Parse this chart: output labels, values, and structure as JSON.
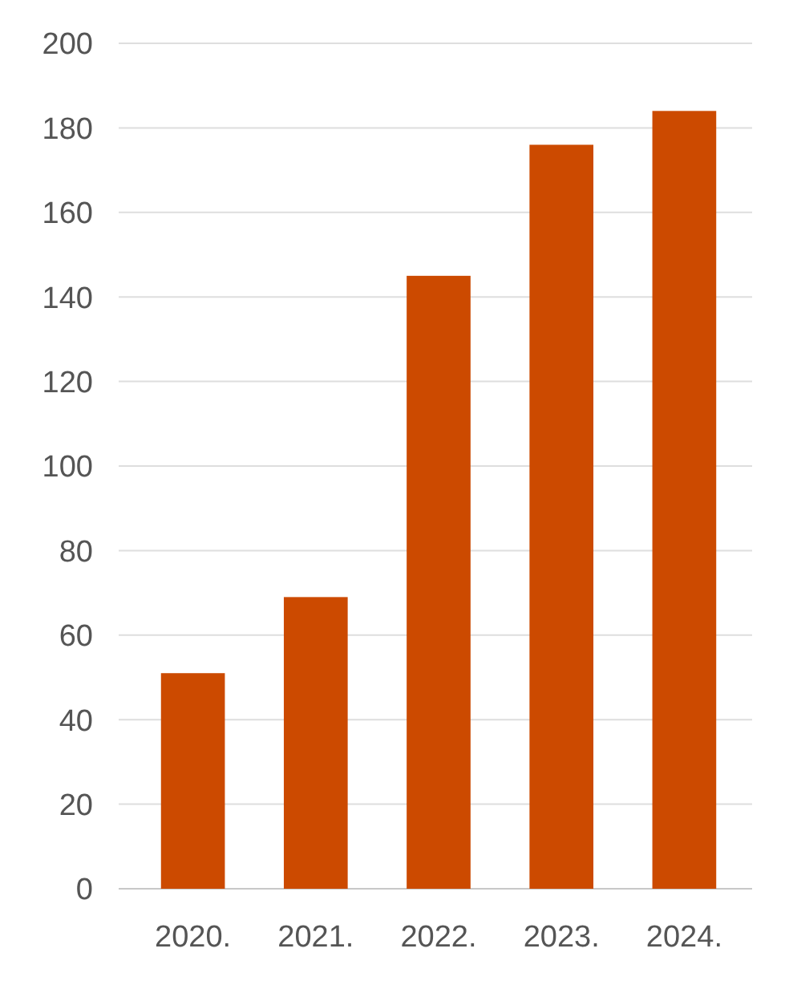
{
  "chart_data": {
    "type": "bar",
    "categories": [
      "2020.",
      "2021.",
      "2022.",
      "2023.",
      "2024."
    ],
    "values": [
      51,
      69,
      145,
      176,
      184
    ],
    "color": "#cc4a00",
    "ylim": [
      0,
      200
    ],
    "yticks": [
      0,
      20,
      40,
      60,
      80,
      100,
      120,
      140,
      160,
      180,
      200
    ],
    "grid": "y"
  }
}
